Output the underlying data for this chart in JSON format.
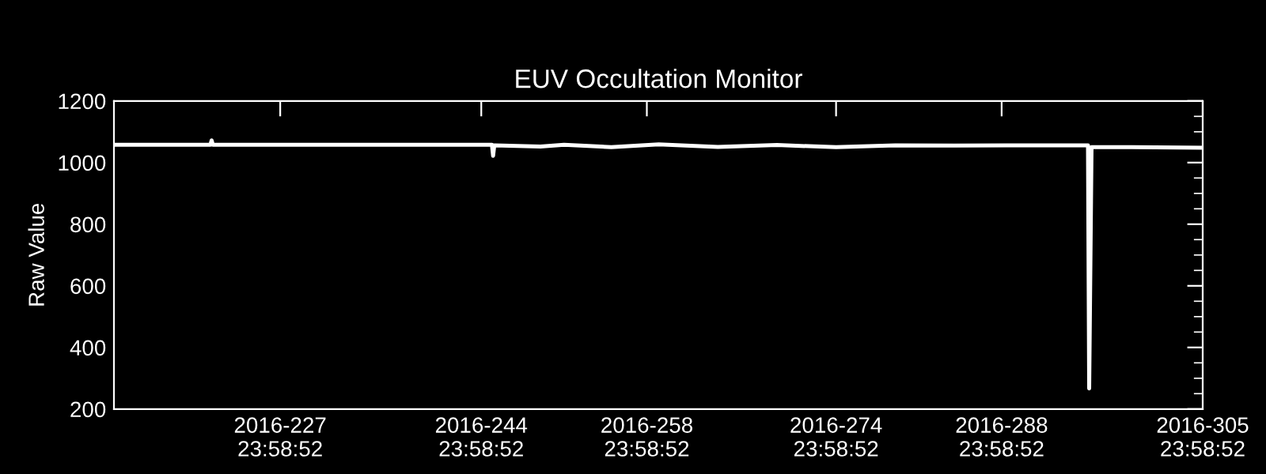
{
  "chart_data": {
    "type": "line",
    "title": "EUV Occultation Monitor",
    "ylabel": "Raw Value",
    "x": [
      "2016-07-31T22:34",
      "2016-08-09T02:24",
      "2016-08-09T04:48",
      "2016-08-09T07:12",
      "2016-08-22T00:00",
      "2016-08-27T10:48",
      "2016-09-01T21:36",
      "2016-09-02T00:00",
      "2016-09-02T02:24",
      "2016-09-06T00:00",
      "2016-09-08T00:00",
      "2016-09-12T00:00",
      "2016-09-16T00:00",
      "2016-09-21T00:00",
      "2016-09-26T00:00",
      "2016-10-01T00:00",
      "2016-10-06T00:00",
      "2016-10-11T00:00",
      "2016-10-16T00:00",
      "2016-10-22T07:12",
      "2016-10-22T09:36",
      "2016-10-22T14:24",
      "2016-10-26T00:00",
      "2016-10-31T23:59"
    ],
    "series": [
      {
        "color": "#ffffff",
        "values": [
          1058,
          1058,
          1072,
          1058,
          1058,
          1058,
          1058,
          1022,
          1056,
          1052,
          1058,
          1050,
          1059,
          1051,
          1057,
          1050,
          1056,
          1055,
          1056,
          1056,
          267,
          1050,
          1050,
          1048
        ]
      }
    ],
    "xlim": [
      "2016-07-31T22:34",
      "2016-10-31T23:59"
    ],
    "xticks": [
      {
        "value": "2016-08-14T23:59",
        "label": "2016-227\n23:58:52"
      },
      {
        "value": "2016-08-31T23:59",
        "label": "2016-244\n23:58:52"
      },
      {
        "value": "2016-09-14T23:59",
        "label": "2016-258\n23:58:52"
      },
      {
        "value": "2016-09-30T23:59",
        "label": "2016-274\n23:58:52"
      },
      {
        "value": "2016-10-14T23:59",
        "label": "2016-288\n23:58:52"
      },
      {
        "value": "2016-10-31T23:59",
        "label": "2016-305\n23:58:52"
      }
    ],
    "ylim": [
      200,
      1200
    ],
    "yticks": [
      200,
      400,
      600,
      800,
      1000,
      1200
    ],
    "grid": false,
    "legend": false,
    "marker": "none",
    "line_style": "solid"
  }
}
